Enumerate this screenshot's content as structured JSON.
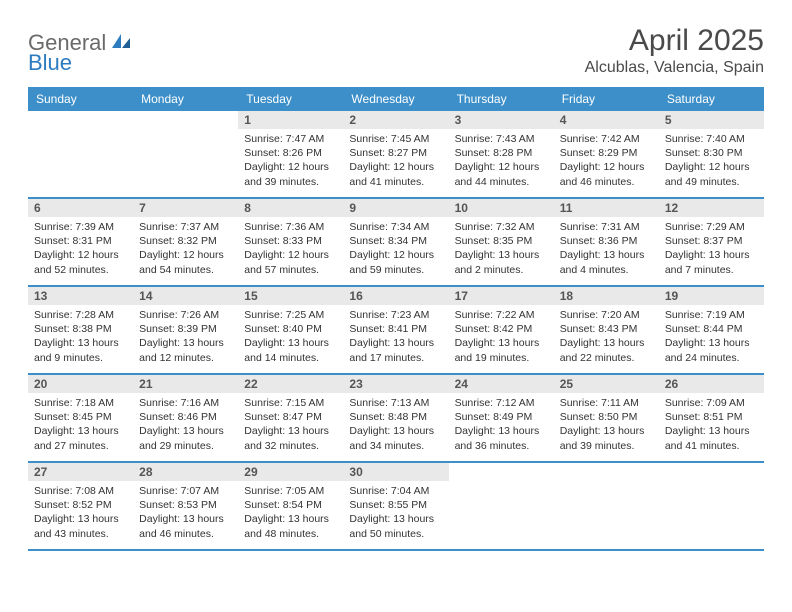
{
  "brand": {
    "word1": "General",
    "word2": "Blue",
    "text_color": "#6a6a6a",
    "accent_color": "#2d7cc0"
  },
  "title": "April 2025",
  "location": "Alcublas, Valencia, Spain",
  "colors": {
    "header_bg": "#3d8fc9",
    "header_text": "#ffffff",
    "daynum_bg": "#e9e9e9",
    "row_border": "#3d8fc9",
    "body_text": "#333333",
    "page_bg": "#ffffff"
  },
  "typography": {
    "title_fontsize": 30,
    "location_fontsize": 16,
    "dayheader_fontsize": 12,
    "daynum_fontsize": 12,
    "cell_fontsize": 10.5
  },
  "day_headers": [
    "Sunday",
    "Monday",
    "Tuesday",
    "Wednesday",
    "Thursday",
    "Friday",
    "Saturday"
  ],
  "weeks": [
    [
      {
        "n": "",
        "sr": "",
        "ss": "",
        "dl": ""
      },
      {
        "n": "",
        "sr": "",
        "ss": "",
        "dl": ""
      },
      {
        "n": "1",
        "sr": "Sunrise: 7:47 AM",
        "ss": "Sunset: 8:26 PM",
        "dl": "Daylight: 12 hours and 39 minutes."
      },
      {
        "n": "2",
        "sr": "Sunrise: 7:45 AM",
        "ss": "Sunset: 8:27 PM",
        "dl": "Daylight: 12 hours and 41 minutes."
      },
      {
        "n": "3",
        "sr": "Sunrise: 7:43 AM",
        "ss": "Sunset: 8:28 PM",
        "dl": "Daylight: 12 hours and 44 minutes."
      },
      {
        "n": "4",
        "sr": "Sunrise: 7:42 AM",
        "ss": "Sunset: 8:29 PM",
        "dl": "Daylight: 12 hours and 46 minutes."
      },
      {
        "n": "5",
        "sr": "Sunrise: 7:40 AM",
        "ss": "Sunset: 8:30 PM",
        "dl": "Daylight: 12 hours and 49 minutes."
      }
    ],
    [
      {
        "n": "6",
        "sr": "Sunrise: 7:39 AM",
        "ss": "Sunset: 8:31 PM",
        "dl": "Daylight: 12 hours and 52 minutes."
      },
      {
        "n": "7",
        "sr": "Sunrise: 7:37 AM",
        "ss": "Sunset: 8:32 PM",
        "dl": "Daylight: 12 hours and 54 minutes."
      },
      {
        "n": "8",
        "sr": "Sunrise: 7:36 AM",
        "ss": "Sunset: 8:33 PM",
        "dl": "Daylight: 12 hours and 57 minutes."
      },
      {
        "n": "9",
        "sr": "Sunrise: 7:34 AM",
        "ss": "Sunset: 8:34 PM",
        "dl": "Daylight: 12 hours and 59 minutes."
      },
      {
        "n": "10",
        "sr": "Sunrise: 7:32 AM",
        "ss": "Sunset: 8:35 PM",
        "dl": "Daylight: 13 hours and 2 minutes."
      },
      {
        "n": "11",
        "sr": "Sunrise: 7:31 AM",
        "ss": "Sunset: 8:36 PM",
        "dl": "Daylight: 13 hours and 4 minutes."
      },
      {
        "n": "12",
        "sr": "Sunrise: 7:29 AM",
        "ss": "Sunset: 8:37 PM",
        "dl": "Daylight: 13 hours and 7 minutes."
      }
    ],
    [
      {
        "n": "13",
        "sr": "Sunrise: 7:28 AM",
        "ss": "Sunset: 8:38 PM",
        "dl": "Daylight: 13 hours and 9 minutes."
      },
      {
        "n": "14",
        "sr": "Sunrise: 7:26 AM",
        "ss": "Sunset: 8:39 PM",
        "dl": "Daylight: 13 hours and 12 minutes."
      },
      {
        "n": "15",
        "sr": "Sunrise: 7:25 AM",
        "ss": "Sunset: 8:40 PM",
        "dl": "Daylight: 13 hours and 14 minutes."
      },
      {
        "n": "16",
        "sr": "Sunrise: 7:23 AM",
        "ss": "Sunset: 8:41 PM",
        "dl": "Daylight: 13 hours and 17 minutes."
      },
      {
        "n": "17",
        "sr": "Sunrise: 7:22 AM",
        "ss": "Sunset: 8:42 PM",
        "dl": "Daylight: 13 hours and 19 minutes."
      },
      {
        "n": "18",
        "sr": "Sunrise: 7:20 AM",
        "ss": "Sunset: 8:43 PM",
        "dl": "Daylight: 13 hours and 22 minutes."
      },
      {
        "n": "19",
        "sr": "Sunrise: 7:19 AM",
        "ss": "Sunset: 8:44 PM",
        "dl": "Daylight: 13 hours and 24 minutes."
      }
    ],
    [
      {
        "n": "20",
        "sr": "Sunrise: 7:18 AM",
        "ss": "Sunset: 8:45 PM",
        "dl": "Daylight: 13 hours and 27 minutes."
      },
      {
        "n": "21",
        "sr": "Sunrise: 7:16 AM",
        "ss": "Sunset: 8:46 PM",
        "dl": "Daylight: 13 hours and 29 minutes."
      },
      {
        "n": "22",
        "sr": "Sunrise: 7:15 AM",
        "ss": "Sunset: 8:47 PM",
        "dl": "Daylight: 13 hours and 32 minutes."
      },
      {
        "n": "23",
        "sr": "Sunrise: 7:13 AM",
        "ss": "Sunset: 8:48 PM",
        "dl": "Daylight: 13 hours and 34 minutes."
      },
      {
        "n": "24",
        "sr": "Sunrise: 7:12 AM",
        "ss": "Sunset: 8:49 PM",
        "dl": "Daylight: 13 hours and 36 minutes."
      },
      {
        "n": "25",
        "sr": "Sunrise: 7:11 AM",
        "ss": "Sunset: 8:50 PM",
        "dl": "Daylight: 13 hours and 39 minutes."
      },
      {
        "n": "26",
        "sr": "Sunrise: 7:09 AM",
        "ss": "Sunset: 8:51 PM",
        "dl": "Daylight: 13 hours and 41 minutes."
      }
    ],
    [
      {
        "n": "27",
        "sr": "Sunrise: 7:08 AM",
        "ss": "Sunset: 8:52 PM",
        "dl": "Daylight: 13 hours and 43 minutes."
      },
      {
        "n": "28",
        "sr": "Sunrise: 7:07 AM",
        "ss": "Sunset: 8:53 PM",
        "dl": "Daylight: 13 hours and 46 minutes."
      },
      {
        "n": "29",
        "sr": "Sunrise: 7:05 AM",
        "ss": "Sunset: 8:54 PM",
        "dl": "Daylight: 13 hours and 48 minutes."
      },
      {
        "n": "30",
        "sr": "Sunrise: 7:04 AM",
        "ss": "Sunset: 8:55 PM",
        "dl": "Daylight: 13 hours and 50 minutes."
      },
      {
        "n": "",
        "sr": "",
        "ss": "",
        "dl": ""
      },
      {
        "n": "",
        "sr": "",
        "ss": "",
        "dl": ""
      },
      {
        "n": "",
        "sr": "",
        "ss": "",
        "dl": ""
      }
    ]
  ]
}
